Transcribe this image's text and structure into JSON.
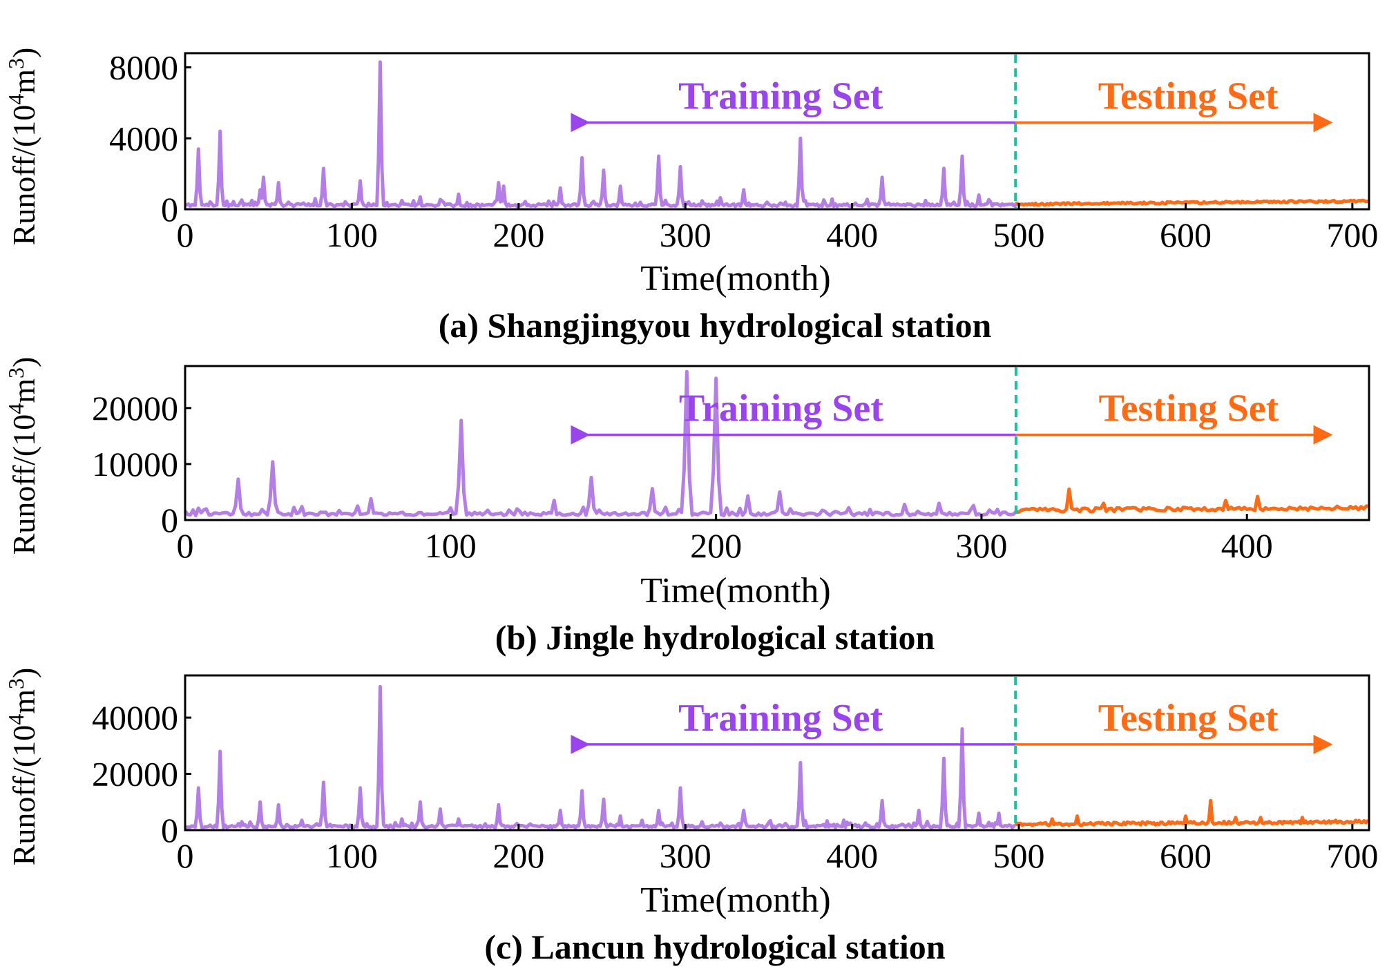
{
  "chart_data": [
    {
      "type": "line",
      "title": "(a) Shangjingyou hydrological station",
      "xlabel": "Time(month)",
      "ylabel_prefix": "Runoff/(10",
      "ylabel_exp1": "4",
      "ylabel_mid": "m",
      "ylabel_exp2": "3",
      "ylabel_suffix": ")",
      "xlim": [
        0,
        710
      ],
      "ylim": [
        0,
        8800
      ],
      "xticks": [
        0,
        100,
        200,
        300,
        400,
        500,
        600,
        700
      ],
      "xtick_labels": [
        "0",
        "100",
        "200",
        "300",
        "400",
        "500",
        "600",
        "700"
      ],
      "yticks": [
        0,
        4000,
        8000
      ],
      "ytick_labels": [
        "0",
        "4000",
        "8000"
      ],
      "split": 498,
      "n_months": 710,
      "seed": 11,
      "train_base": 160,
      "train_noise": 150,
      "test_base": 230,
      "test_noise": 110,
      "test_trend": 180,
      "peaks": [
        [
          8,
          3400
        ],
        [
          21,
          4400
        ],
        [
          34,
          520
        ],
        [
          45,
          1100
        ],
        [
          47,
          1800
        ],
        [
          56,
          1500
        ],
        [
          71,
          350
        ],
        [
          78,
          600
        ],
        [
          83,
          2300
        ],
        [
          105,
          1600
        ],
        [
          117,
          8300
        ],
        [
          130,
          500
        ],
        [
          141,
          700
        ],
        [
          153,
          550
        ],
        [
          164,
          850
        ],
        [
          188,
          1500
        ],
        [
          191,
          1300
        ],
        [
          225,
          1200
        ],
        [
          238,
          2900
        ],
        [
          251,
          2200
        ],
        [
          261,
          1300
        ],
        [
          284,
          3000
        ],
        [
          297,
          2400
        ],
        [
          310,
          480
        ],
        [
          321,
          650
        ],
        [
          335,
          1100
        ],
        [
          349,
          400
        ],
        [
          369,
          4000
        ],
        [
          383,
          300
        ],
        [
          402,
          350
        ],
        [
          418,
          1800
        ],
        [
          433,
          300
        ],
        [
          444,
          500
        ],
        [
          455,
          2300
        ],
        [
          466,
          3000
        ],
        [
          476,
          800
        ],
        [
          490,
          300
        ]
      ],
      "test_peaks": [
        [
          530,
          350
        ],
        [
          560,
          250
        ],
        [
          620,
          280
        ],
        [
          655,
          250
        ],
        [
          690,
          400
        ]
      ],
      "series": [
        {
          "name": "Training Set",
          "color": "#b57ee6",
          "label_color": "#9a44f0"
        },
        {
          "name": "Testing Set",
          "color": "#ff6a14",
          "label_color": "#ff6a14"
        }
      ],
      "divider_color": "#19c29a"
    },
    {
      "type": "line",
      "title": "(b) Jingle hydrological station",
      "xlabel": "Time(month)",
      "ylabel_prefix": "Runoff/(10",
      "ylabel_exp1": "4",
      "ylabel_mid": "m",
      "ylabel_exp2": "3",
      "ylabel_suffix": ")",
      "xlim": [
        0,
        446
      ],
      "ylim": [
        0,
        27500
      ],
      "xticks": [
        0,
        100,
        200,
        300,
        400
      ],
      "xtick_labels": [
        "0",
        "100",
        "200",
        "300",
        "400"
      ],
      "yticks": [
        0,
        10000,
        20000
      ],
      "ytick_labels": [
        "0",
        "10000",
        "20000"
      ],
      "split": 313,
      "n_months": 446,
      "seed": 23,
      "train_base": 800,
      "train_noise": 600,
      "test_base": 1400,
      "test_noise": 700,
      "test_trend": 400,
      "peaks": [
        [
          3,
          1800
        ],
        [
          8,
          2000
        ],
        [
          20,
          7300
        ],
        [
          33,
          10400
        ],
        [
          44,
          2400
        ],
        [
          65,
          2500
        ],
        [
          70,
          3800
        ],
        [
          104,
          17800
        ],
        [
          125,
          2000
        ],
        [
          139,
          3500
        ],
        [
          153,
          7600
        ],
        [
          176,
          5600
        ],
        [
          189,
          26500
        ],
        [
          200,
          25300
        ],
        [
          212,
          4300
        ],
        [
          224,
          5000
        ],
        [
          248,
          1200
        ],
        [
          271,
          2800
        ],
        [
          284,
          3000
        ],
        [
          297,
          2600
        ]
      ],
      "test_peaks": [
        [
          333,
          5500
        ],
        [
          346,
          3000
        ],
        [
          355,
          2000
        ],
        [
          371,
          1600
        ],
        [
          381,
          2000
        ],
        [
          392,
          3500
        ],
        [
          404,
          4200
        ],
        [
          418,
          1800
        ],
        [
          440,
          1800
        ]
      ],
      "series": [
        {
          "name": "Training Set",
          "color": "#b57ee6",
          "label_color": "#9a44f0"
        },
        {
          "name": "Testing Set",
          "color": "#ff6a14",
          "label_color": "#ff6a14"
        }
      ],
      "divider_color": "#19c29a"
    },
    {
      "type": "line",
      "title": "(c) Lancun hydrological station",
      "xlabel": "Time(month)",
      "ylabel_prefix": "Runoff/(10",
      "ylabel_exp1": "4",
      "ylabel_mid": "m",
      "ylabel_exp2": "3",
      "ylabel_suffix": ")",
      "xlim": [
        0,
        710
      ],
      "ylim": [
        0,
        55000
      ],
      "xticks": [
        0,
        100,
        200,
        300,
        400,
        500,
        600,
        700
      ],
      "xtick_labels": [
        "0",
        "100",
        "200",
        "300",
        "400",
        "500",
        "600",
        "700"
      ],
      "yticks": [
        0,
        20000,
        40000
      ],
      "ytick_labels": [
        "0",
        "20000",
        "40000"
      ],
      "split": 498,
      "n_months": 710,
      "seed": 37,
      "train_base": 900,
      "train_noise": 900,
      "test_base": 1500,
      "test_noise": 1100,
      "test_trend": 900,
      "peaks": [
        [
          8,
          15000
        ],
        [
          21,
          28000
        ],
        [
          34,
          3000
        ],
        [
          45,
          10000
        ],
        [
          56,
          9000
        ],
        [
          70,
          3500
        ],
        [
          83,
          17000
        ],
        [
          105,
          15000
        ],
        [
          117,
          51000
        ],
        [
          130,
          4000
        ],
        [
          141,
          10000
        ],
        [
          153,
          7500
        ],
        [
          164,
          4000
        ],
        [
          188,
          9000
        ],
        [
          225,
          7000
        ],
        [
          238,
          14000
        ],
        [
          251,
          11000
        ],
        [
          261,
          5000
        ],
        [
          274,
          3500
        ],
        [
          284,
          7000
        ],
        [
          297,
          15000
        ],
        [
          310,
          3000
        ],
        [
          321,
          2500
        ],
        [
          335,
          7000
        ],
        [
          369,
          24000
        ],
        [
          383,
          2000
        ],
        [
          402,
          2000
        ],
        [
          418,
          10500
        ],
        [
          440,
          7000
        ],
        [
          455,
          25500
        ],
        [
          466,
          36000
        ],
        [
          476,
          6000
        ],
        [
          488,
          6000
        ]
      ],
      "test_peaks": [
        [
          520,
          4000
        ],
        [
          535,
          5000
        ],
        [
          548,
          2000
        ],
        [
          575,
          2500
        ],
        [
          600,
          5000
        ],
        [
          615,
          10500
        ],
        [
          630,
          4500
        ],
        [
          645,
          4500
        ],
        [
          670,
          4500
        ],
        [
          690,
          3500
        ]
      ],
      "series": [
        {
          "name": "Training Set",
          "color": "#b57ee6",
          "label_color": "#9a44f0"
        },
        {
          "name": "Testing Set",
          "color": "#ff6a14",
          "label_color": "#ff6a14"
        }
      ],
      "divider_color": "#19c29a"
    }
  ]
}
